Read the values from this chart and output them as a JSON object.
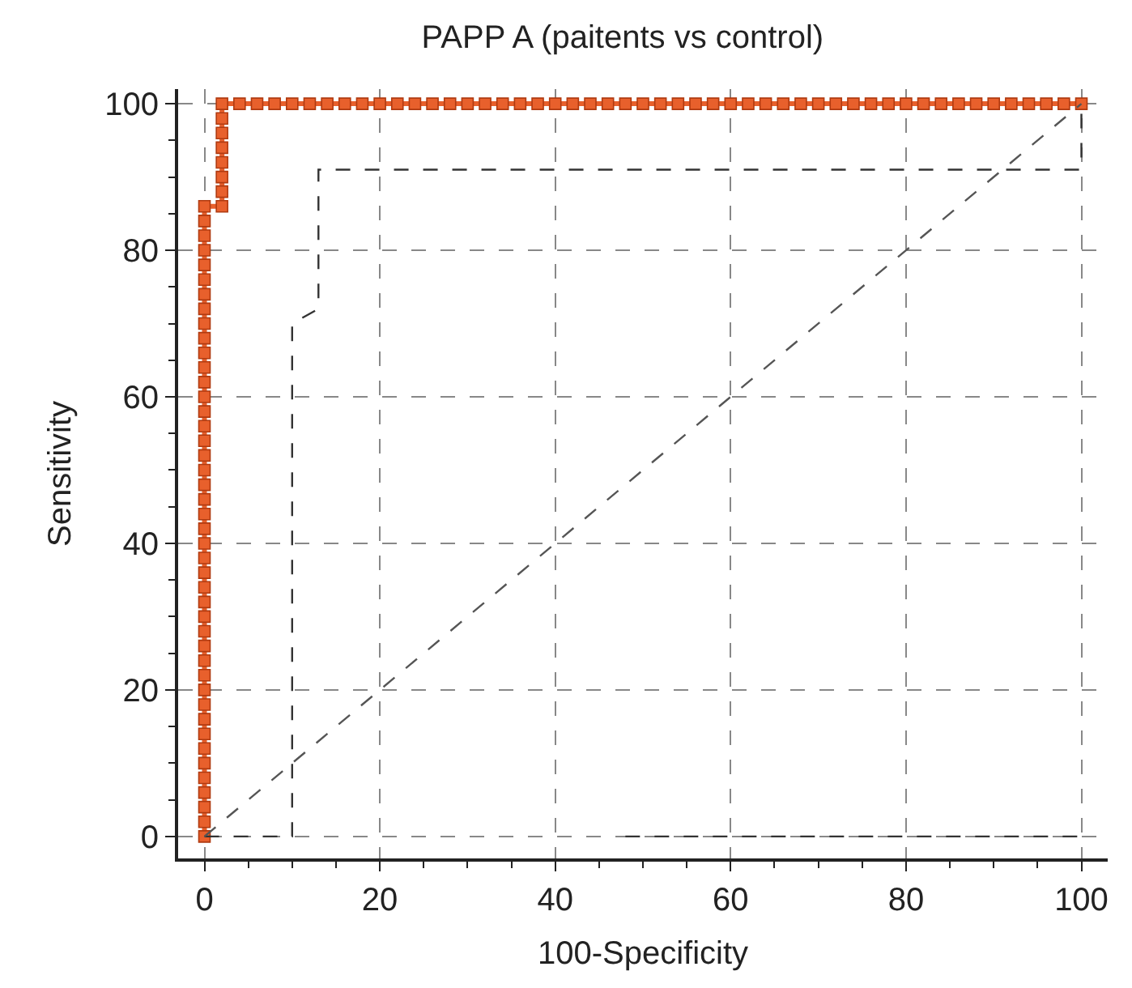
{
  "chart_data": {
    "type": "line",
    "title": "PAPP A (paitents vs control)",
    "xlabel": "100-Specificity",
    "ylabel": "Sensitivity",
    "xlim": [
      -3,
      103
    ],
    "ylim": [
      -3,
      102
    ],
    "xticks": [
      0,
      20,
      40,
      60,
      80,
      100
    ],
    "yticks": [
      0,
      20,
      40,
      60,
      80,
      100
    ],
    "grid": true,
    "series": [
      {
        "color": "#e8602c",
        "marker": "square",
        "line_style": "solid",
        "x": [
          0,
          0,
          0,
          0,
          0,
          0,
          0,
          0,
          0,
          0,
          0,
          0,
          0,
          0,
          0,
          0,
          0,
          0,
          0,
          0,
          0,
          0,
          0,
          0,
          0,
          0,
          0,
          0,
          0,
          0,
          0,
          0,
          0,
          0,
          0,
          0,
          0,
          0,
          0,
          0,
          0,
          0,
          0,
          0,
          2,
          2,
          2,
          2,
          2,
          2,
          2,
          2,
          4,
          6,
          8,
          10,
          12,
          14,
          16,
          18,
          20,
          22,
          24,
          26,
          28,
          30,
          32,
          34,
          36,
          38,
          40,
          42,
          44,
          46,
          48,
          50,
          52,
          54,
          56,
          58,
          60,
          62,
          64,
          66,
          68,
          70,
          72,
          74,
          76,
          78,
          80,
          82,
          84,
          86,
          88,
          90,
          92,
          94,
          96,
          98,
          100
        ],
        "values": [
          0,
          2,
          4,
          6,
          8,
          10,
          12,
          14,
          16,
          18,
          20,
          22,
          24,
          26,
          28,
          30,
          32,
          34,
          36,
          38,
          40,
          42,
          44,
          46,
          48,
          50,
          52,
          54,
          56,
          58,
          60,
          62,
          64,
          66,
          68,
          70,
          72,
          74,
          76,
          78,
          80,
          82,
          84,
          86,
          86,
          88,
          90,
          92,
          94,
          96,
          98,
          100,
          100,
          100,
          100,
          100,
          100,
          100,
          100,
          100,
          100,
          100,
          100,
          100,
          100,
          100,
          100,
          100,
          100,
          100,
          100,
          100,
          100,
          100,
          100,
          100,
          100,
          100,
          100,
          100,
          100,
          100,
          100,
          100,
          100,
          100,
          100,
          100,
          100,
          100,
          100,
          100,
          100,
          100,
          100,
          100,
          100,
          100,
          100,
          100,
          100
        ]
      },
      {
        "color": "#333333",
        "marker": "none",
        "line_style": "dashed",
        "x": [
          0,
          10,
          10,
          13,
          13,
          100,
          100
        ],
        "values": [
          0,
          0,
          70,
          72,
          91,
          91,
          100
        ]
      },
      {
        "color": "#333333",
        "marker": "none",
        "line_style": "dashed",
        "x": [
          48,
          100
        ],
        "values": [
          0,
          0
        ]
      },
      {
        "color": "#555555",
        "marker": "none",
        "line_style": "dashed",
        "x": [
          0,
          100
        ],
        "values": [
          0,
          100
        ]
      }
    ]
  }
}
